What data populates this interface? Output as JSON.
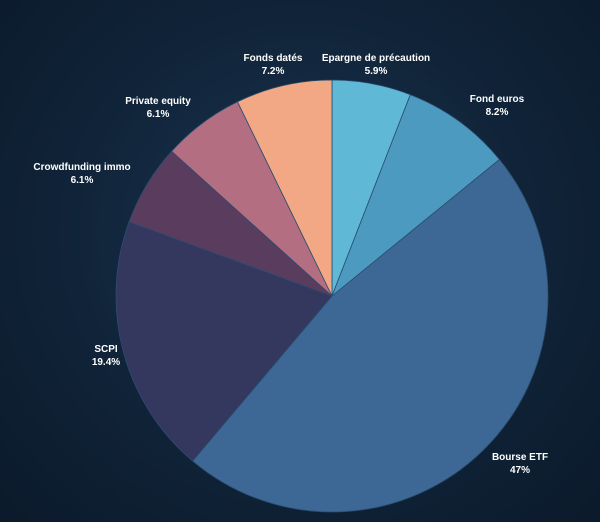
{
  "chart_data": {
    "type": "pie",
    "start_angle_deg": 0,
    "direction": "clockwise",
    "slices": [
      {
        "label": "Epargne de précaution",
        "value_label": "5.9%",
        "value": 5.9,
        "color": "#5fb8d5"
      },
      {
        "label": "Fond euros",
        "value_label": "8.2%",
        "value": 8.2,
        "color": "#4c9ac0"
      },
      {
        "label": "Bourse ETF",
        "value_label": "47%",
        "value": 47,
        "color": "#3d6795"
      },
      {
        "label": "SCPI",
        "value_label": "19.4%",
        "value": 19.4,
        "color": "#34375e"
      },
      {
        "label": "Crowdfunding immo",
        "value_label": "6.1%",
        "value": 6.1,
        "color": "#5a3c5f"
      },
      {
        "label": "Private equity",
        "value_label": "6.1%",
        "value": 6.1,
        "color": "#b46e82"
      },
      {
        "label": "Fonds datés",
        "value_label": "7.2%",
        "value": 7.2,
        "color": "#f2a884"
      }
    ]
  }
}
